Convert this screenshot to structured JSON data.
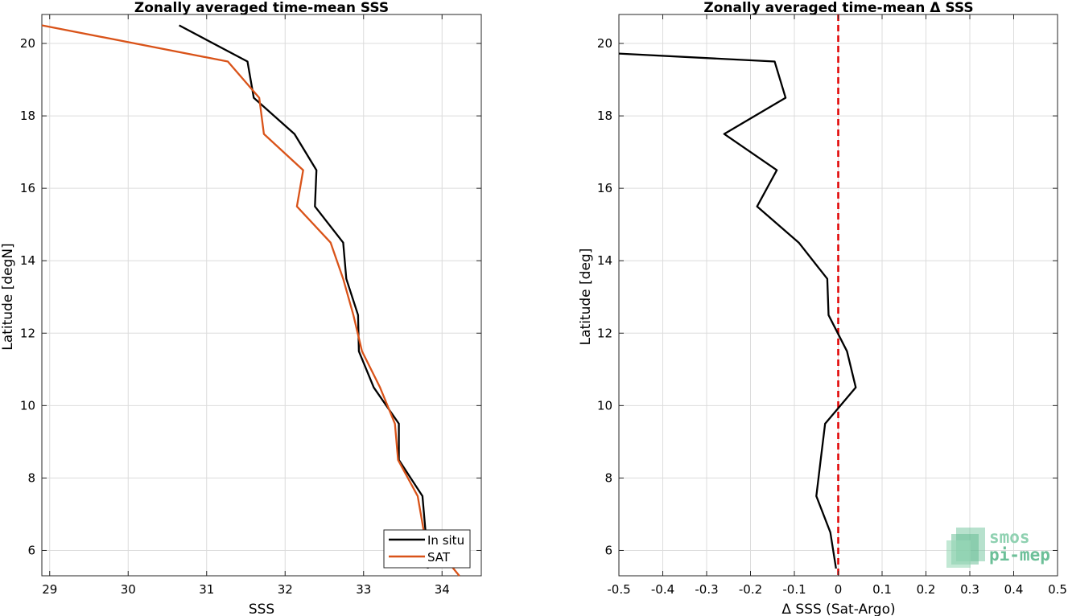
{
  "chart_data": [
    {
      "type": "line",
      "title": "Zonally averaged time-mean SSS",
      "xlabel": "SSS",
      "ylabel": "Latitude [degN]",
      "xlim": [
        28.9,
        34.5
      ],
      "ylim": [
        5.3,
        20.8
      ],
      "xticks": [
        29,
        30,
        31,
        32,
        33,
        34
      ],
      "yticks": [
        6,
        8,
        10,
        12,
        14,
        16,
        18,
        20
      ],
      "grid": true,
      "legend_position": "bottom-right",
      "series": [
        {
          "name": "In situ",
          "color": "#000000",
          "points": [
            [
              30.65,
              20.5
            ],
            [
              31.52,
              19.5
            ],
            [
              31.6,
              18.5
            ],
            [
              32.12,
              17.5
            ],
            [
              32.4,
              16.5
            ],
            [
              32.38,
              15.5
            ],
            [
              32.74,
              14.5
            ],
            [
              32.78,
              13.5
            ],
            [
              32.93,
              12.5
            ],
            [
              32.94,
              11.5
            ],
            [
              33.13,
              10.5
            ],
            [
              33.45,
              9.5
            ],
            [
              33.45,
              8.5
            ],
            [
              33.75,
              7.5
            ],
            [
              33.79,
              6.5
            ],
            [
              33.82,
              5.5
            ]
          ]
        },
        {
          "name": "SAT",
          "color": "#d95319",
          "points": [
            [
              28.9,
              20.5
            ],
            [
              31.27,
              19.5
            ],
            [
              31.67,
              18.5
            ],
            [
              31.73,
              17.5
            ],
            [
              32.23,
              16.5
            ],
            [
              32.15,
              15.5
            ],
            [
              32.58,
              14.5
            ],
            [
              32.74,
              13.5
            ],
            [
              32.87,
              12.5
            ],
            [
              32.98,
              11.5
            ],
            [
              33.21,
              10.5
            ],
            [
              33.4,
              9.5
            ],
            [
              33.44,
              8.5
            ],
            [
              33.69,
              7.5
            ],
            [
              33.77,
              6.5
            ],
            [
              34.22,
              5.3
            ]
          ]
        }
      ]
    },
    {
      "type": "line",
      "title": "Zonally averaged time-mean Δ SSS",
      "xlabel": "Δ SSS (Sat-Argo)",
      "ylabel": "Latitude [deg]",
      "xlim": [
        -0.5,
        0.5
      ],
      "ylim": [
        5.3,
        20.8
      ],
      "xticks": [
        -0.5,
        -0.4,
        -0.3,
        -0.2,
        -0.1,
        0,
        0.1,
        0.2,
        0.3,
        0.4,
        0.5
      ],
      "yticks": [
        6,
        8,
        10,
        12,
        14,
        16,
        18,
        20
      ],
      "grid": true,
      "reference_line": {
        "x": 0,
        "color": "#e00000",
        "style": "dashed"
      },
      "series": [
        {
          "color": "#000000",
          "points": [
            [
              -0.5,
              19.72
            ],
            [
              -0.145,
              19.5
            ],
            [
              -0.12,
              18.5
            ],
            [
              -0.26,
              17.5
            ],
            [
              -0.14,
              16.5
            ],
            [
              -0.185,
              15.5
            ],
            [
              -0.09,
              14.5
            ],
            [
              -0.025,
              13.5
            ],
            [
              -0.022,
              12.5
            ],
            [
              0.02,
              11.5
            ],
            [
              0.04,
              10.5
            ],
            [
              -0.03,
              9.5
            ],
            [
              -0.04,
              8.5
            ],
            [
              -0.05,
              7.5
            ],
            [
              -0.018,
              6.5
            ],
            [
              -0.005,
              5.5
            ]
          ]
        }
      ]
    }
  ],
  "logo": {
    "line1": "smos",
    "line2": "pi-mep"
  }
}
